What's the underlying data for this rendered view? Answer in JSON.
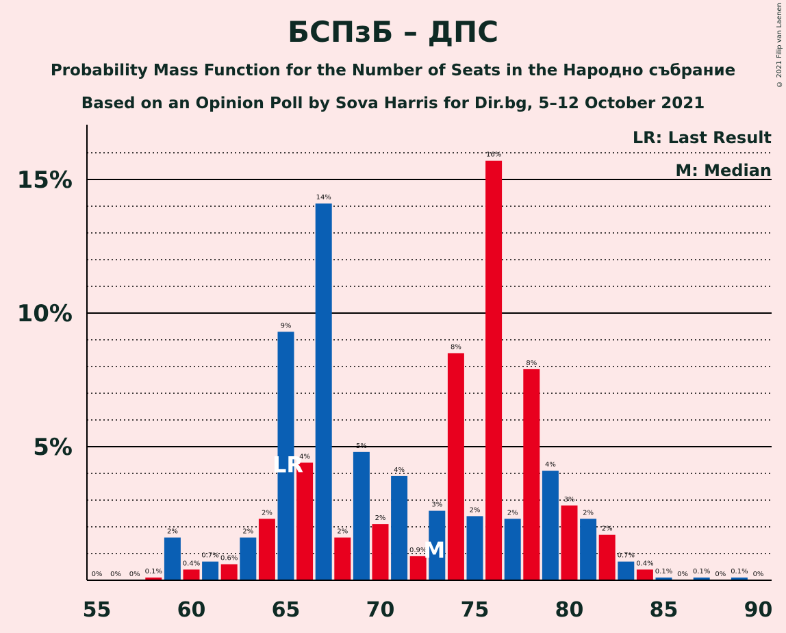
{
  "title": "БСПзБ – ДПС",
  "subtitle1": "Probability Mass Function for the Number of Seats in the Народно събрание",
  "subtitle2": "Based on an Opinion Poll by Sova Harris for Dir.bg, 5–12 October 2021",
  "copyright": "© 2021 Filip van Laenen",
  "legend": {
    "last_result": "LR: Last Result",
    "median": "M: Median"
  },
  "markers": {
    "last_result": "LR",
    "median": "M"
  },
  "colors": {
    "blue": "#0a5fb4",
    "red": "#e8001e",
    "background": "#fde8e8",
    "text": "#0e2a24"
  },
  "chart_data": {
    "type": "bar",
    "x": [
      55,
      56,
      57,
      58,
      59,
      60,
      61,
      62,
      63,
      64,
      65,
      66,
      67,
      68,
      69,
      70,
      71,
      72,
      73,
      74,
      75,
      76,
      77,
      78,
      79,
      80,
      81,
      82,
      83,
      84,
      85,
      86,
      87,
      88,
      89,
      90
    ],
    "values": [
      0,
      0,
      0,
      0.1,
      1.6,
      0.4,
      0.7,
      0.6,
      1.6,
      2.3,
      9.3,
      4.4,
      14.1,
      1.6,
      4.8,
      2.1,
      3.9,
      0.9,
      2.6,
      8.5,
      2.4,
      15.7,
      2.3,
      7.9,
      4.1,
      2.8,
      2.3,
      1.7,
      0.7,
      0.4,
      0.1,
      0,
      0.1,
      0,
      0.1,
      0
    ],
    "labels": [
      "0%",
      "0%",
      "0%",
      "0.1%",
      "2%",
      "0.4%",
      "0.7%",
      "0.6%",
      "2%",
      "2%",
      "9%",
      "4%",
      "14%",
      "2%",
      "5%",
      "2%",
      "4%",
      "0.9%",
      "3%",
      "8%",
      "2%",
      "16%",
      "2%",
      "8%",
      "4%",
      "3%",
      "2%",
      "2%",
      "0.7%",
      "0.4%",
      "0.1%",
      "0%",
      "0.1%",
      "0%",
      "0.1%",
      "0%"
    ],
    "colors": [
      "blue",
      "red",
      "blue",
      "red",
      "blue",
      "red",
      "blue",
      "red",
      "blue",
      "red",
      "blue",
      "red",
      "blue",
      "red",
      "blue",
      "red",
      "blue",
      "red",
      "blue",
      "red",
      "blue",
      "red",
      "blue",
      "red",
      "blue",
      "red",
      "blue",
      "red",
      "blue",
      "red",
      "blue",
      "red",
      "blue",
      "red",
      "blue",
      "red"
    ],
    "xticks": [
      55,
      60,
      65,
      70,
      75,
      80,
      85,
      90
    ],
    "yticks": [
      {
        "value": 5,
        "label": "5%"
      },
      {
        "value": 10,
        "label": "10%"
      },
      {
        "value": 15,
        "label": "15%"
      }
    ],
    "ylim": [
      0,
      17
    ],
    "last_result_seat": 65,
    "median_seat": 73,
    "grid": "dotted minor every 1%, solid major every 5%"
  }
}
